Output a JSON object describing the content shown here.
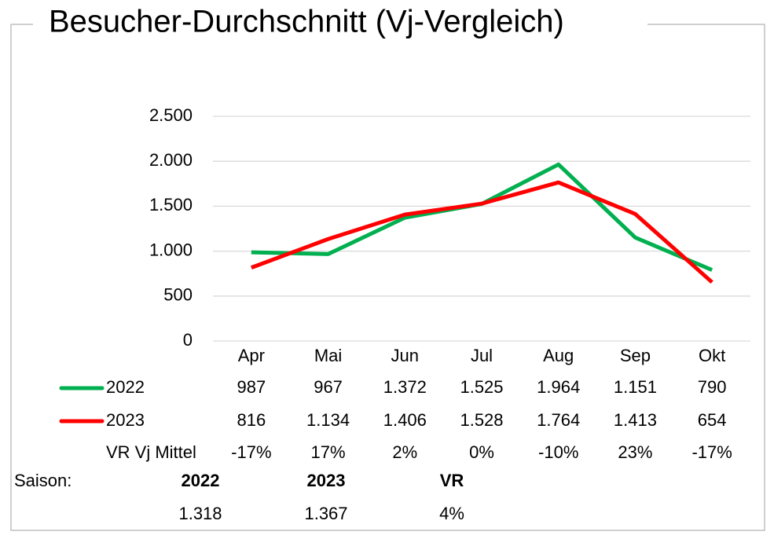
{
  "chart_data": {
    "type": "line",
    "title": "Besucher-Durchschnitt (Vj-Vergleich)",
    "categories": [
      "Apr",
      "Mai",
      "Jun",
      "Jul",
      "Aug",
      "Sep",
      "Okt"
    ],
    "series": [
      {
        "name": "2022",
        "color": "#00b050",
        "values": [
          987,
          967,
          1372,
          1525,
          1964,
          1151,
          790
        ],
        "value_labels": [
          "987",
          "967",
          "1.372",
          "1.525",
          "1.964",
          "1.151",
          "790"
        ]
      },
      {
        "name": "2023",
        "color": "#ff0000",
        "values": [
          816,
          1134,
          1406,
          1528,
          1764,
          1413,
          654
        ],
        "value_labels": [
          "816",
          "1.134",
          "1.406",
          "1.528",
          "1.764",
          "1.413",
          "654"
        ]
      }
    ],
    "vr_row": {
      "name": "VR Vj Mittel",
      "values": [
        -17,
        17,
        2,
        0,
        -10,
        23,
        -17
      ],
      "value_labels": [
        "-17%",
        "17%",
        "2%",
        "0%",
        "-10%",
        "23%",
        "-17%"
      ]
    },
    "ylim": [
      0,
      2500
    ],
    "yticks": [
      0,
      500,
      {
        "value": 1000,
        "label": "1.000"
      },
      {
        "value": 1500,
        "label": "1.500"
      },
      {
        "value": 2000,
        "label": "2.000"
      },
      {
        "value": 2500,
        "label": "2.500"
      }
    ],
    "grid": true,
    "season": {
      "label": "Saison:",
      "headers": [
        "2022",
        "2023",
        "VR"
      ],
      "values": [
        1318,
        1367,
        4
      ],
      "value_labels": [
        "1.318",
        "1.367",
        "4%"
      ]
    }
  }
}
